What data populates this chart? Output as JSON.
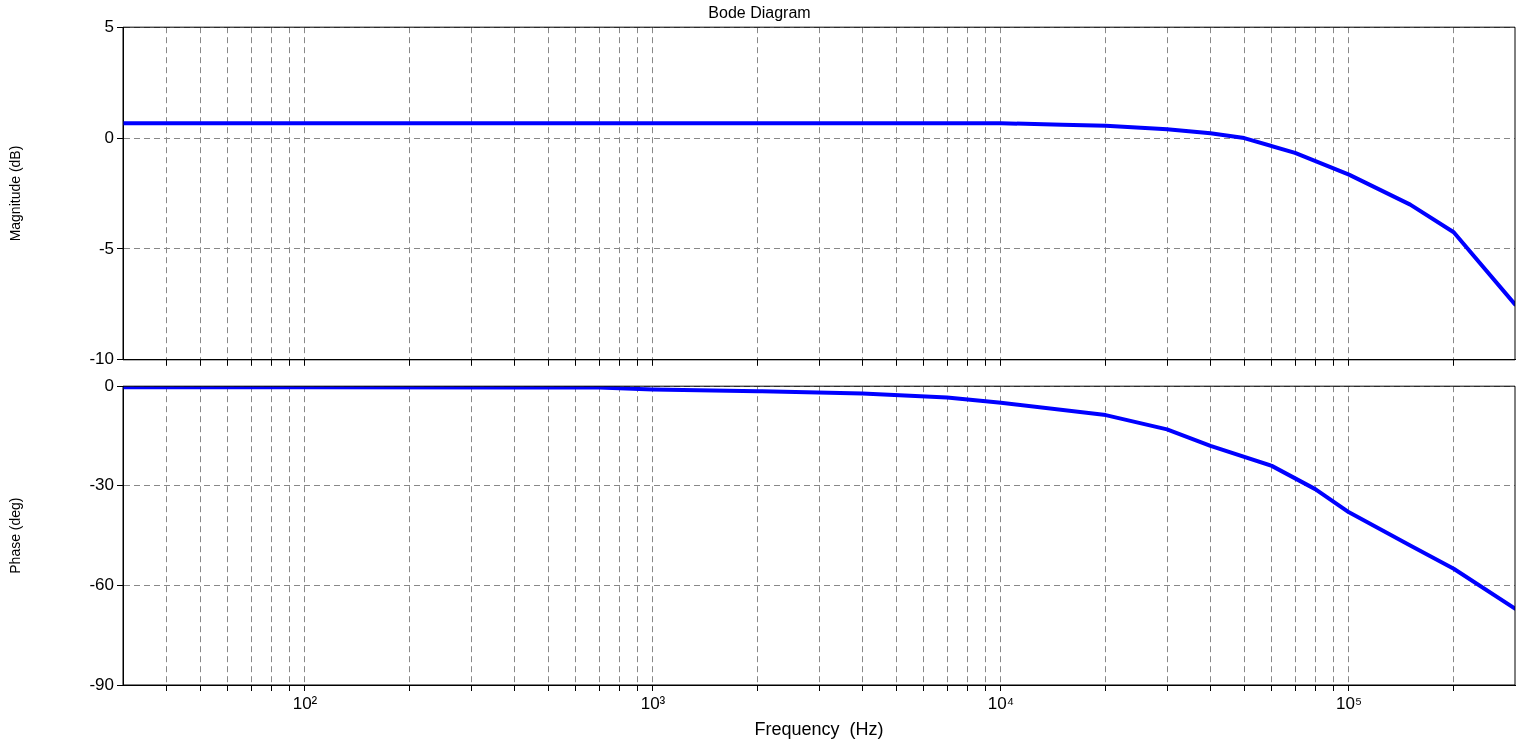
{
  "chart_data": [
    {
      "type": "line",
      "title": "Bode Diagram",
      "ylabel": "Magnitude (dB)",
      "log": "x",
      "grid": true,
      "marker": "none",
      "tick_labels": "y",
      "x": [
        30,
        100,
        1000,
        10000,
        15000,
        20000,
        30000,
        40000,
        50000,
        70000,
        100000,
        150000,
        200000,
        300000
      ],
      "series": [
        {
          "color": "#0000ff",
          "values": [
            0.67,
            0.67,
            0.67,
            0.67,
            0.6,
            0.55,
            0.4,
            0.22,
            0,
            -0.67,
            -1.65,
            -3.0,
            -4.25,
            -7.5
          ]
        }
      ],
      "xlim": [
        30,
        300000
      ],
      "ylim": [
        -10,
        5
      ],
      "yticks": [
        -10,
        -5,
        0,
        5
      ],
      "xticks": [
        {
          "value": 40,
          "label": null
        },
        {
          "value": 50,
          "label": null
        },
        {
          "value": 60,
          "label": null
        },
        {
          "value": 70,
          "label": null
        },
        {
          "value": 80,
          "label": null
        },
        {
          "value": 90,
          "label": null
        },
        {
          "value": 100,
          "label": null
        },
        {
          "value": 200,
          "label": null
        },
        {
          "value": 300,
          "label": null
        },
        {
          "value": 400,
          "label": null
        },
        {
          "value": 500,
          "label": null
        },
        {
          "value": 600,
          "label": null
        },
        {
          "value": 700,
          "label": null
        },
        {
          "value": 800,
          "label": null
        },
        {
          "value": 900,
          "label": null
        },
        {
          "value": 1000,
          "label": null
        },
        {
          "value": 2000,
          "label": null
        },
        {
          "value": 3000,
          "label": null
        },
        {
          "value": 4000,
          "label": null
        },
        {
          "value": 5000,
          "label": null
        },
        {
          "value": 6000,
          "label": null
        },
        {
          "value": 7000,
          "label": null
        },
        {
          "value": 8000,
          "label": null
        },
        {
          "value": 9000,
          "label": null
        },
        {
          "value": 10000,
          "label": null
        },
        {
          "value": 20000,
          "label": null
        },
        {
          "value": 30000,
          "label": null
        },
        {
          "value": 40000,
          "label": null
        },
        {
          "value": 50000,
          "label": null
        },
        {
          "value": 60000,
          "label": null
        },
        {
          "value": 70000,
          "label": null
        },
        {
          "value": 80000,
          "label": null
        },
        {
          "value": 90000,
          "label": null
        },
        {
          "value": 100000,
          "label": null
        },
        {
          "value": 200000,
          "label": null
        }
      ]
    },
    {
      "type": "line",
      "xlabel": "Frequency  (Hz)",
      "ylabel": "Phase (deg)",
      "log": "x",
      "grid": true,
      "marker": "none",
      "x": [
        30,
        100,
        700,
        1000,
        2000,
        4000,
        7000,
        10000,
        20000,
        30000,
        40000,
        60000,
        80000,
        100000,
        150000,
        200000,
        300000
      ],
      "series": [
        {
          "color": "#0000ff",
          "values": [
            -0.3,
            -0.3,
            -0.4,
            -1,
            -1.5,
            -2.2,
            -3.4,
            -5,
            -8.7,
            -13,
            -18,
            -24,
            -31,
            -38,
            -48,
            -55,
            -67
          ]
        }
      ],
      "xlim": [
        30,
        300000
      ],
      "ylim": [
        -90,
        0
      ],
      "yticks": [
        -90,
        -60,
        -30,
        0
      ],
      "xticks": [
        {
          "value": 40,
          "label": null
        },
        {
          "value": 50,
          "label": null
        },
        {
          "value": 60,
          "label": null
        },
        {
          "value": 70,
          "label": null
        },
        {
          "value": 80,
          "label": null
        },
        {
          "value": 90,
          "label": null
        },
        {
          "value": 100,
          "label": "10²"
        },
        {
          "value": 200,
          "label": null
        },
        {
          "value": 300,
          "label": null
        },
        {
          "value": 400,
          "label": null
        },
        {
          "value": 500,
          "label": null
        },
        {
          "value": 600,
          "label": null
        },
        {
          "value": 700,
          "label": null
        },
        {
          "value": 800,
          "label": null
        },
        {
          "value": 900,
          "label": null
        },
        {
          "value": 1000,
          "label": "10³"
        },
        {
          "value": 2000,
          "label": null
        },
        {
          "value": 3000,
          "label": null
        },
        {
          "value": 4000,
          "label": null
        },
        {
          "value": 5000,
          "label": null
        },
        {
          "value": 6000,
          "label": null
        },
        {
          "value": 7000,
          "label": null
        },
        {
          "value": 8000,
          "label": null
        },
        {
          "value": 9000,
          "label": null
        },
        {
          "value": 10000,
          "label": "10⁴"
        },
        {
          "value": 20000,
          "label": null
        },
        {
          "value": 30000,
          "label": null
        },
        {
          "value": 40000,
          "label": null
        },
        {
          "value": 50000,
          "label": null
        },
        {
          "value": 60000,
          "label": null
        },
        {
          "value": 70000,
          "label": null
        },
        {
          "value": 80000,
          "label": null
        },
        {
          "value": 90000,
          "label": null
        },
        {
          "value": 100000,
          "label": "10⁵"
        },
        {
          "value": 200000,
          "label": null
        }
      ]
    }
  ]
}
